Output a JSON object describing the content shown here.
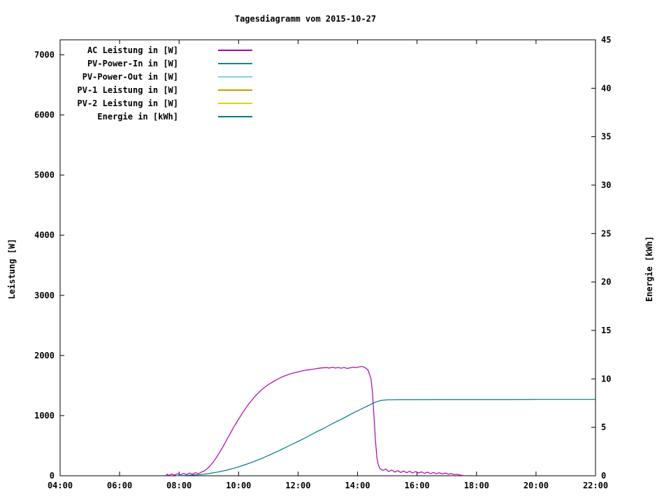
{
  "chart_data": {
    "type": "line",
    "title": "Tagesdiagramm vom 2015-10-27",
    "ylabel_left": "Leistung [W]",
    "ylabel_right": "Energie [kWh]",
    "grid": false,
    "legend_position": "top-left-inside",
    "background": "#ffffff",
    "xlim": [
      4,
      22
    ],
    "ylim_left": [
      0,
      7250
    ],
    "ylim_right": [
      0,
      45
    ],
    "x_ticks": [
      {
        "value": 4,
        "label": "04:00"
      },
      {
        "value": 6,
        "label": "06:00"
      },
      {
        "value": 8,
        "label": "08:00"
      },
      {
        "value": 10,
        "label": "10:00"
      },
      {
        "value": 12,
        "label": "12:00"
      },
      {
        "value": 14,
        "label": "14:00"
      },
      {
        "value": 16,
        "label": "16:00"
      },
      {
        "value": 18,
        "label": "18:00"
      },
      {
        "value": 20,
        "label": "20:00"
      },
      {
        "value": 22,
        "label": "22:00"
      }
    ],
    "y_left_ticks": [
      {
        "value": 0,
        "label": "0"
      },
      {
        "value": 1000,
        "label": "1000"
      },
      {
        "value": 2000,
        "label": "2000"
      },
      {
        "value": 3000,
        "label": "3000"
      },
      {
        "value": 4000,
        "label": "4000"
      },
      {
        "value": 5000,
        "label": "5000"
      },
      {
        "value": 6000,
        "label": "6000"
      },
      {
        "value": 7000,
        "label": "7000"
      }
    ],
    "y_right_ticks": [
      {
        "value": 0,
        "label": "0"
      },
      {
        "value": 5,
        "label": "5"
      },
      {
        "value": 10,
        "label": "10"
      },
      {
        "value": 15,
        "label": "15"
      },
      {
        "value": 20,
        "label": "20"
      },
      {
        "value": 25,
        "label": "25"
      },
      {
        "value": 30,
        "label": "30"
      },
      {
        "value": 35,
        "label": "35"
      },
      {
        "value": 40,
        "label": "40"
      },
      {
        "value": 45,
        "label": "45"
      }
    ],
    "series": [
      {
        "name": "AC Leistung in [W]",
        "color": "#b000b0",
        "axis": "left",
        "points": [
          [
            7.55,
            0
          ],
          [
            7.6,
            25
          ],
          [
            7.65,
            5
          ],
          [
            7.75,
            30
          ],
          [
            7.85,
            10
          ],
          [
            7.95,
            35
          ],
          [
            8.05,
            15
          ],
          [
            8.15,
            40
          ],
          [
            8.25,
            20
          ],
          [
            8.35,
            45
          ],
          [
            8.45,
            25
          ],
          [
            8.55,
            50
          ],
          [
            8.65,
            35
          ],
          [
            8.75,
            60
          ],
          [
            8.85,
            80
          ],
          [
            8.95,
            120
          ],
          [
            9.05,
            170
          ],
          [
            9.15,
            230
          ],
          [
            9.25,
            300
          ],
          [
            9.35,
            380
          ],
          [
            9.45,
            460
          ],
          [
            9.55,
            550
          ],
          [
            9.65,
            640
          ],
          [
            9.75,
            730
          ],
          [
            9.85,
            820
          ],
          [
            9.95,
            900
          ],
          [
            10.05,
            980
          ],
          [
            10.15,
            1060
          ],
          [
            10.25,
            1130
          ],
          [
            10.35,
            1200
          ],
          [
            10.45,
            1260
          ],
          [
            10.55,
            1320
          ],
          [
            10.65,
            1370
          ],
          [
            10.75,
            1420
          ],
          [
            10.85,
            1460
          ],
          [
            10.95,
            1500
          ],
          [
            11.05,
            1530
          ],
          [
            11.15,
            1560
          ],
          [
            11.25,
            1590
          ],
          [
            11.35,
            1615
          ],
          [
            11.45,
            1640
          ],
          [
            11.55,
            1660
          ],
          [
            11.65,
            1680
          ],
          [
            11.75,
            1695
          ],
          [
            11.85,
            1710
          ],
          [
            11.95,
            1720
          ],
          [
            12.05,
            1735
          ],
          [
            12.15,
            1745
          ],
          [
            12.25,
            1755
          ],
          [
            12.35,
            1760
          ],
          [
            12.45,
            1770
          ],
          [
            12.55,
            1775
          ],
          [
            12.65,
            1785
          ],
          [
            12.75,
            1790
          ],
          [
            12.85,
            1795
          ],
          [
            12.95,
            1800
          ],
          [
            13.05,
            1790
          ],
          [
            13.15,
            1805
          ],
          [
            13.25,
            1792
          ],
          [
            13.35,
            1800
          ],
          [
            13.45,
            1788
          ],
          [
            13.55,
            1800
          ],
          [
            13.65,
            1785
          ],
          [
            13.75,
            1795
          ],
          [
            13.85,
            1805
          ],
          [
            13.95,
            1798
          ],
          [
            14.05,
            1810
          ],
          [
            14.15,
            1818
          ],
          [
            14.25,
            1800
          ],
          [
            14.35,
            1760
          ],
          [
            14.45,
            1620
          ],
          [
            14.5,
            1400
          ],
          [
            14.55,
            1000
          ],
          [
            14.6,
            600
          ],
          [
            14.65,
            300
          ],
          [
            14.7,
            180
          ],
          [
            14.75,
            120
          ],
          [
            14.85,
            90
          ],
          [
            14.95,
            110
          ],
          [
            15.05,
            70
          ],
          [
            15.15,
            95
          ],
          [
            15.25,
            60
          ],
          [
            15.35,
            85
          ],
          [
            15.45,
            55
          ],
          [
            15.55,
            80
          ],
          [
            15.65,
            50
          ],
          [
            15.75,
            75
          ],
          [
            15.85,
            45
          ],
          [
            15.95,
            70
          ],
          [
            16.05,
            45
          ],
          [
            16.15,
            65
          ],
          [
            16.25,
            40
          ],
          [
            16.35,
            60
          ],
          [
            16.45,
            35
          ],
          [
            16.55,
            55
          ],
          [
            16.65,
            35
          ],
          [
            16.75,
            50
          ],
          [
            16.85,
            30
          ],
          [
            16.95,
            45
          ],
          [
            17.05,
            25
          ],
          [
            17.15,
            35
          ],
          [
            17.25,
            20
          ],
          [
            17.35,
            25
          ],
          [
            17.45,
            10
          ],
          [
            17.55,
            5
          ],
          [
            17.62,
            0
          ]
        ]
      },
      {
        "name": "PV-Power-In in [W]",
        "color": "#008b8b",
        "axis": "left",
        "points": []
      },
      {
        "name": "PV-Power-Out in [W]",
        "color": "#87ceeb",
        "axis": "left",
        "points": []
      },
      {
        "name": "PV-1 Leistung in [W]",
        "color": "#cf9b00",
        "axis": "left",
        "points": []
      },
      {
        "name": "PV-2 Leistung in [W]",
        "color": "#e0d500",
        "axis": "left",
        "points": []
      },
      {
        "name": "Energie in [kWh]",
        "color": "#007a80",
        "axis": "right",
        "points": [
          [
            7.9,
            0
          ],
          [
            8.3,
            0.05
          ],
          [
            8.7,
            0.12
          ],
          [
            9.0,
            0.22
          ],
          [
            9.3,
            0.38
          ],
          [
            9.6,
            0.58
          ],
          [
            9.9,
            0.82
          ],
          [
            10.2,
            1.12
          ],
          [
            10.5,
            1.45
          ],
          [
            10.8,
            1.82
          ],
          [
            11.1,
            2.22
          ],
          [
            11.4,
            2.65
          ],
          [
            11.7,
            3.1
          ],
          [
            12.0,
            3.55
          ],
          [
            12.3,
            4.0
          ],
          [
            12.6,
            4.5
          ],
          [
            12.9,
            4.95
          ],
          [
            13.2,
            5.45
          ],
          [
            13.5,
            5.9
          ],
          [
            13.8,
            6.4
          ],
          [
            14.1,
            6.85
          ],
          [
            14.4,
            7.3
          ],
          [
            14.6,
            7.6
          ],
          [
            14.8,
            7.78
          ],
          [
            15.0,
            7.84
          ],
          [
            15.5,
            7.86
          ],
          [
            16.0,
            7.86
          ],
          [
            17.0,
            7.87
          ],
          [
            18.0,
            7.87
          ],
          [
            19.0,
            7.87
          ],
          [
            20.0,
            7.88
          ],
          [
            21.0,
            7.88
          ],
          [
            22.0,
            7.88
          ]
        ]
      }
    ]
  }
}
